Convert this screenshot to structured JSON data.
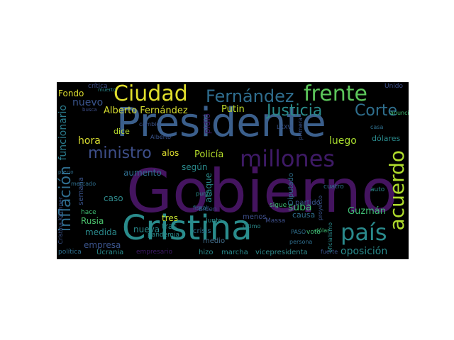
{
  "word_cloud": {
    "background": "#000000",
    "words": [
      {
        "text": "Gobierno",
        "color": "#44145f"
      },
      {
        "text": "Presidente",
        "color": "#3b5f8c"
      },
      {
        "text": "Cristina",
        "color": "#2a8c8c"
      },
      {
        "text": "millones",
        "color": "#3e1a66"
      },
      {
        "text": "Ciudad",
        "color": "#e0de2c"
      },
      {
        "text": "Fernández",
        "color": "#2f6d8e"
      },
      {
        "text": "frente",
        "color": "#5cc65a"
      },
      {
        "text": "país",
        "color": "#2a8a8c"
      },
      {
        "text": "acuerdo",
        "color": "#b0dc2c"
      },
      {
        "text": "Justicia",
        "color": "#2a8a8a"
      },
      {
        "text": "Corte",
        "color": "#2f6f8e"
      },
      {
        "text": "inflación",
        "color": "#2f6d8e"
      },
      {
        "text": "funcionario",
        "color": "#2b7c8e"
      },
      {
        "text": "ministro",
        "color": "#3e4f8a"
      },
      {
        "text": "Alberto Fernández",
        "color": "#d6dc30"
      },
      {
        "text": "Putin",
        "color": "#c2de2e"
      },
      {
        "text": "Policía",
        "color": "#b6de2a"
      },
      {
        "text": "oposición",
        "color": "#2a8a8c"
      },
      {
        "text": "Guzmán",
        "color": "#3fbc73"
      },
      {
        "text": "Rusia",
        "color": "#4bc26c"
      },
      {
        "text": "empresa",
        "color": "#3a548c"
      },
      {
        "text": "medida",
        "color": "#2a8a8c"
      },
      {
        "text": "nueva",
        "color": "#2a8a8c"
      },
      {
        "text": "aumento",
        "color": "#2f6d8e"
      },
      {
        "text": "caso",
        "color": "#2f8a8c"
      },
      {
        "text": "hora",
        "color": "#d8dc30"
      },
      {
        "text": "semana",
        "color": "#3a548c"
      },
      {
        "text": "dice",
        "color": "#b8dc30"
      },
      {
        "text": "alos",
        "color": "#dcdc2e"
      },
      {
        "text": "según",
        "color": "#2a8a8c"
      },
      {
        "text": "tres",
        "color": "#c2de2e"
      },
      {
        "text": "tras",
        "color": "#2a8a8c"
      },
      {
        "text": "luego",
        "color": "#a8dc2e"
      },
      {
        "text": "causa",
        "color": "#2f6f8e"
      },
      {
        "text": "suba",
        "color": "#3fbc73"
      },
      {
        "text": "partido",
        "color": "#3a548c"
      },
      {
        "text": "crisis",
        "color": "#2f6f8e"
      },
      {
        "text": "medio",
        "color": "#44708e"
      },
      {
        "text": "menos",
        "color": "#3e4f8a"
      },
      {
        "text": "ataque",
        "color": "#2a8a8c"
      },
      {
        "text": "Fondo",
        "color": "#dcdc2e"
      },
      {
        "text": "nuevo",
        "color": "#3a548c"
      },
      {
        "text": "pidió",
        "color": "#3e1a66"
      },
      {
        "text": "vicepresidenta",
        "color": "#2f8a8c"
      },
      {
        "text": "marcha",
        "color": "#2a8a8c"
      },
      {
        "text": "hizo",
        "color": "#2a8a8c"
      },
      {
        "text": "dólares",
        "color": "#2a8a8c"
      },
      {
        "text": "Ucrania",
        "color": "#2a8a8c"
      },
      {
        "text": "política",
        "color": "#2f6f8e"
      },
      {
        "text": "hace",
        "color": "#3fbc73"
      },
      {
        "text": "cuatro",
        "color": "#2f6f8e"
      },
      {
        "text": "sigue",
        "color": "#3fbc73"
      },
      {
        "text": "pandemia",
        "color": "#2a8a8c"
      },
      {
        "text": "empresario",
        "color": "#3e1a66"
      },
      {
        "text": "Diputado",
        "color": "#2f6f8e"
      },
      {
        "text": "auto",
        "color": "#2a8a8c"
      },
      {
        "text": "Massa",
        "color": "#3e4f8a"
      },
      {
        "text": "crítica",
        "color": "#3e4f8a"
      },
      {
        "text": "Unido",
        "color": "#3e4f8a"
      },
      {
        "text": "Junto",
        "color": "#2a8a8c"
      },
      {
        "text": "Biden",
        "color": "#3a548c"
      },
      {
        "text": "mercado",
        "color": "#2f6f8e"
      },
      {
        "text": "cambio",
        "color": "#3a548c"
      },
      {
        "text": "casa",
        "color": "#2f6f8e"
      },
      {
        "text": "LXXVI",
        "color": "#3a548c"
      },
      {
        "text": "voto",
        "color": "#3fbc73"
      },
      {
        "text": "primera",
        "color": "#3a548c"
      },
      {
        "text": "persona",
        "color": "#2f6f8e"
      },
      {
        "text": "último",
        "color": "#2a8a8c"
      },
      {
        "text": "fuerte",
        "color": "#3a548c"
      },
      {
        "text": "dólar",
        "color": "#3fbc73"
      },
      {
        "text": "Cristina Kirchner",
        "color": "#3a548c"
      },
      {
        "text": "PASO",
        "color": "#2f6f8e"
      },
      {
        "text": "anuncio",
        "color": "#3fbc73"
      },
      {
        "text": "proyecto",
        "color": "#3a548c"
      },
      {
        "text": "oficialismo",
        "color": "#2a8a8c"
      },
      {
        "text": "precio",
        "color": "#2f6f8e"
      },
      {
        "text": "punto",
        "color": "#2a8a8c"
      },
      {
        "text": "fiscal",
        "color": "#2f6f8e"
      },
      {
        "text": "Alberto",
        "color": "#3a548c"
      },
      {
        "text": "busca",
        "color": "#3e4f8a"
      },
      {
        "text": "muerto",
        "color": "#2a8a8c"
      }
    ]
  }
}
